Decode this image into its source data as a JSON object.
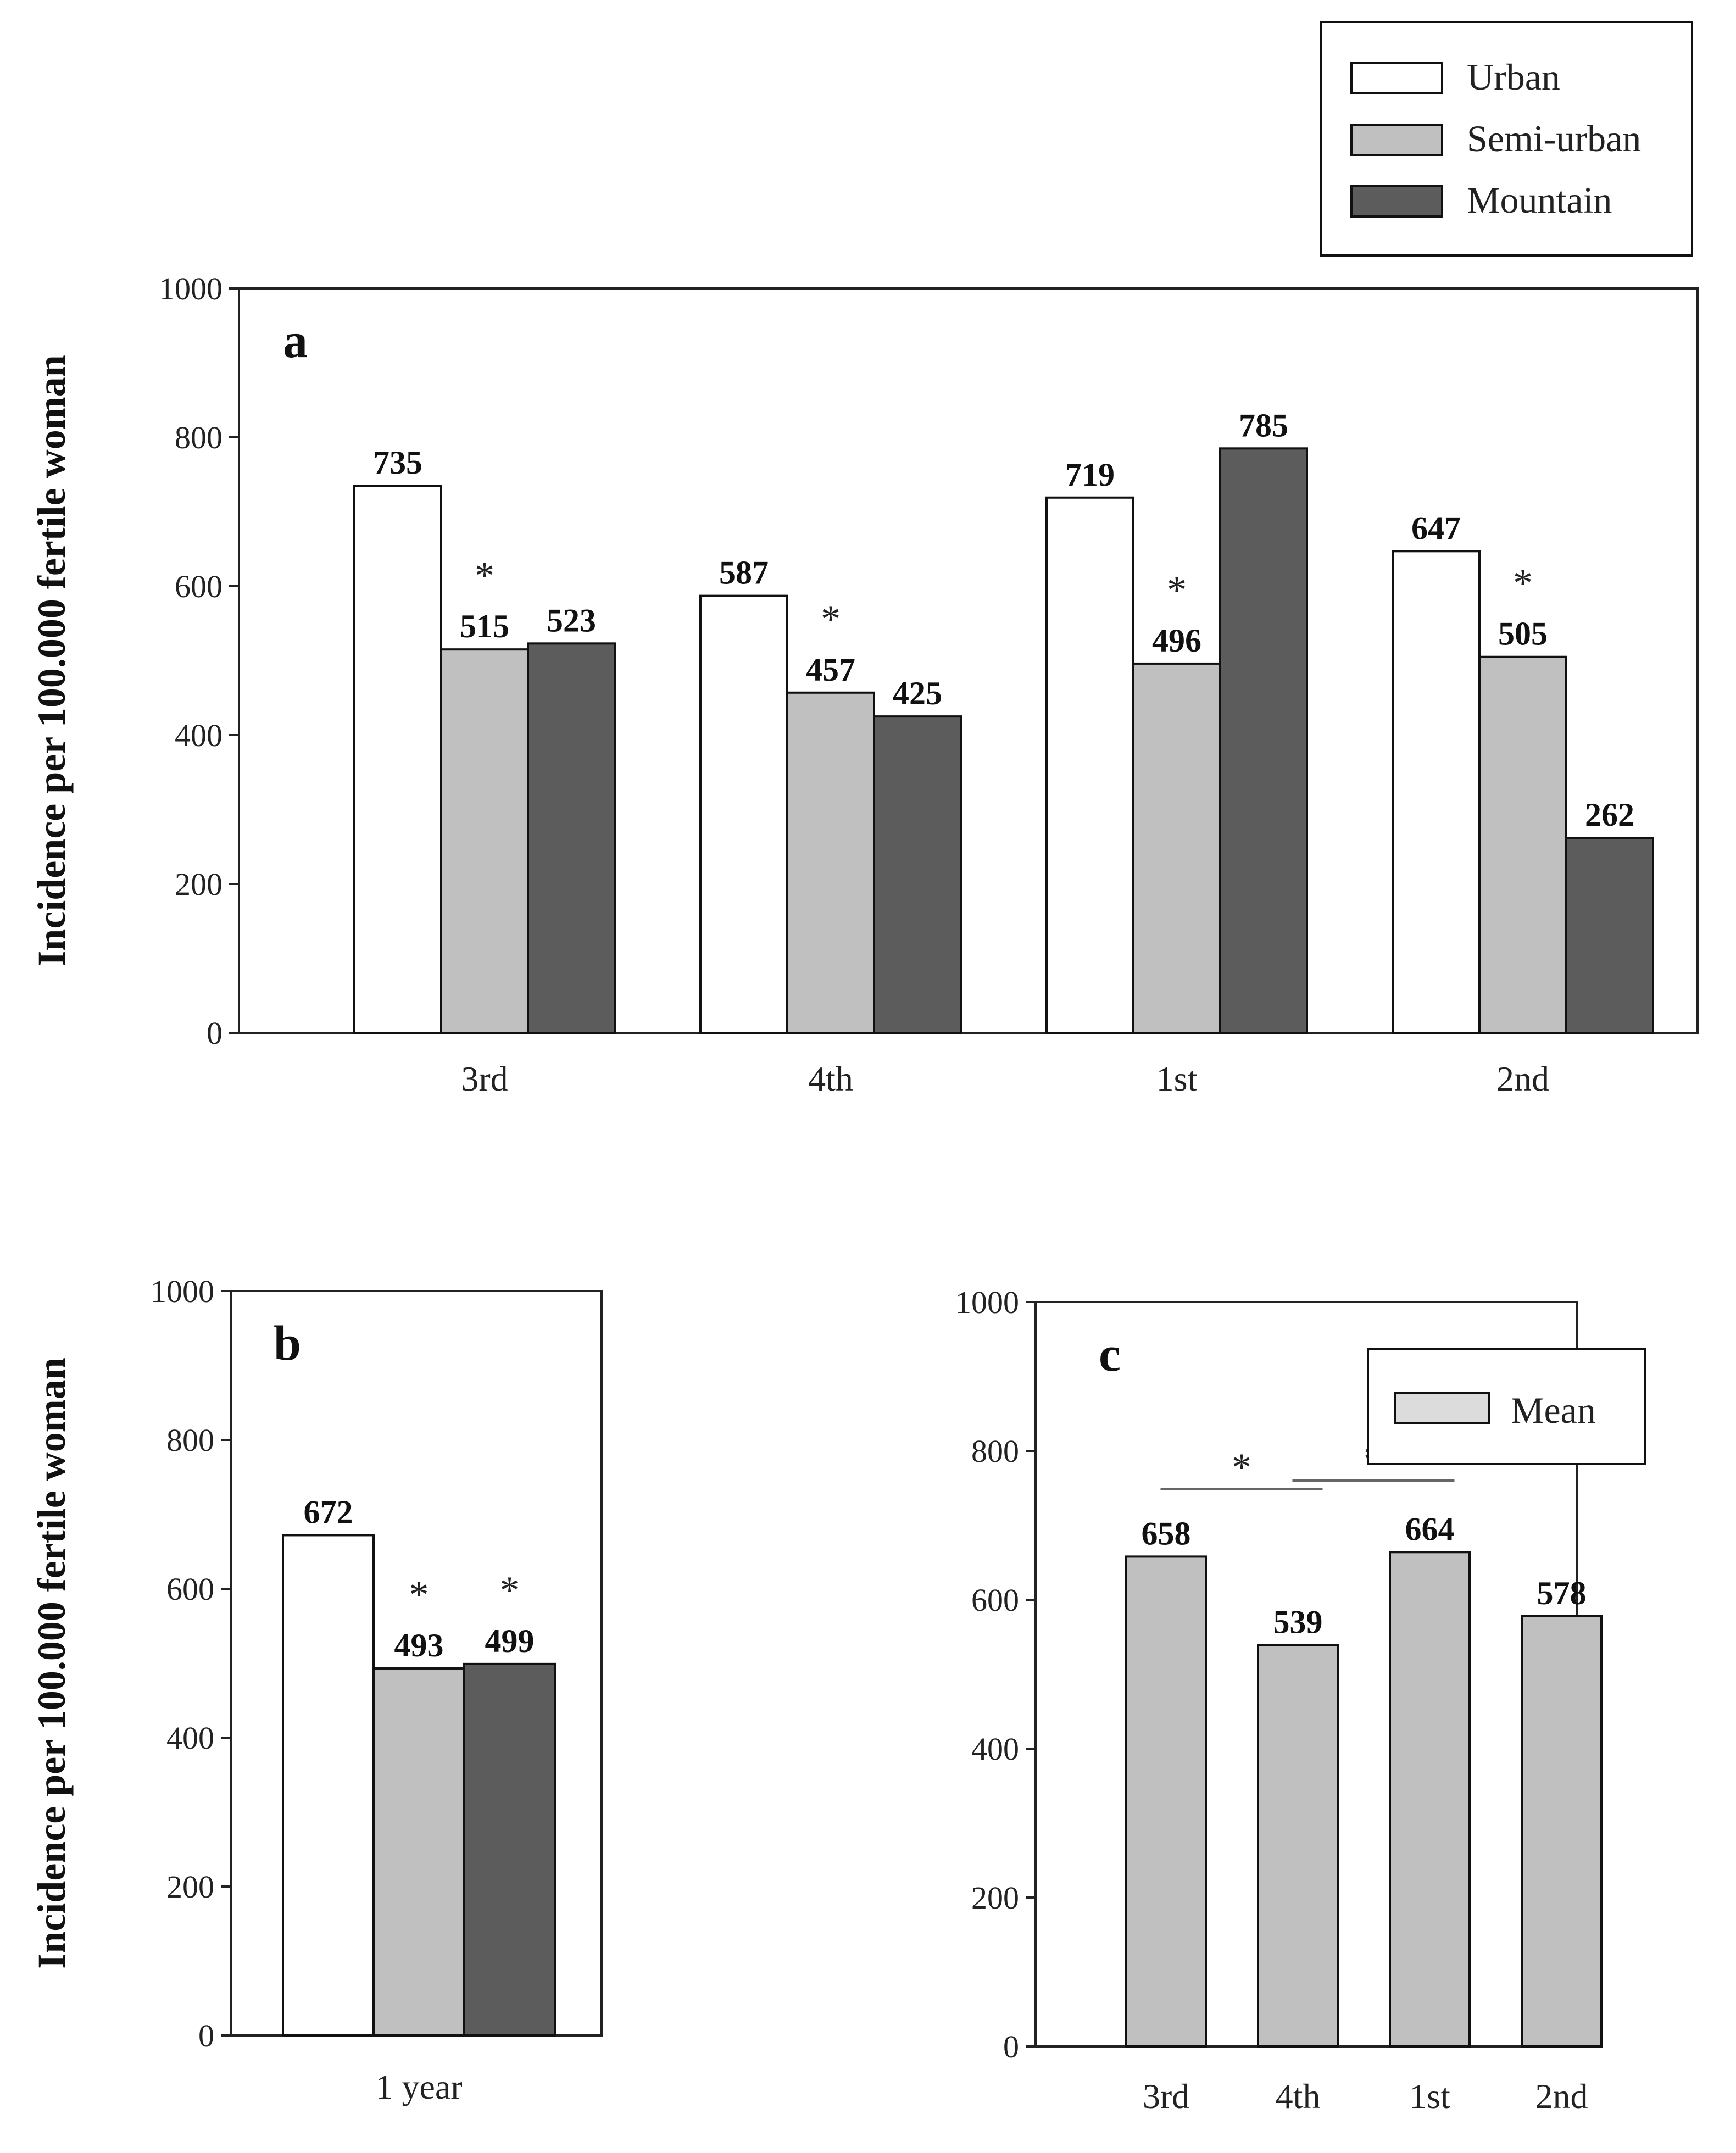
{
  "chart_data": [
    {
      "id": "a",
      "type": "bar",
      "panel_label": "a",
      "ylabel": "Incidence per 100.000 fertile woman",
      "ylim": [
        0,
        1000
      ],
      "yticks": [
        "0",
        "200",
        "400",
        "600",
        "800",
        "1000"
      ],
      "categories": [
        "3rd",
        "4th",
        "1st",
        "2nd"
      ],
      "series": [
        {
          "name": "Urban",
          "color": "#ffffff",
          "values": [
            735,
            587,
            719,
            647
          ]
        },
        {
          "name": "Semi-urban",
          "color": "#c0c0c0",
          "values": [
            515,
            457,
            496,
            505
          ]
        },
        {
          "name": "Mountain",
          "color": "#5c5c5c",
          "values": [
            523,
            425,
            785,
            262
          ]
        }
      ],
      "data_labels": [
        [
          "735",
          "587",
          "719",
          "647"
        ],
        [
          "515",
          "457",
          "496",
          "505"
        ],
        [
          "523",
          "425",
          "785",
          "262"
        ]
      ],
      "significance_marker": "*",
      "significance_series": "Semi-urban",
      "legend": {
        "position": "top-right",
        "entries": [
          "Urban",
          "Semi-urban",
          "Mountain"
        ]
      }
    },
    {
      "id": "b",
      "type": "bar",
      "panel_label": "b",
      "ylabel": "Incidence per 100.000 fertile woman",
      "ylim": [
        0,
        1000
      ],
      "yticks": [
        "0",
        "200",
        "400",
        "600",
        "800",
        "1000"
      ],
      "categories": [
        "1 year"
      ],
      "series": [
        {
          "name": "Urban",
          "color": "#ffffff",
          "values": [
            672
          ],
          "label": "672",
          "significant": false
        },
        {
          "name": "Semi-urban",
          "color": "#c0c0c0",
          "values": [
            493
          ],
          "label": "493",
          "significant": true
        },
        {
          "name": "Mountain",
          "color": "#5c5c5c",
          "values": [
            499
          ],
          "label": "499",
          "significant": true
        }
      ],
      "significance_marker": "*"
    },
    {
      "id": "c",
      "type": "bar",
      "panel_label": "c",
      "ylim": [
        0,
        1000
      ],
      "yticks": [
        "0",
        "200",
        "400",
        "600",
        "800",
        "1000"
      ],
      "categories": [
        "3rd",
        "4th",
        "1st",
        "2nd"
      ],
      "series": [
        {
          "name": "Mean",
          "color": "#c0c0c0",
          "values": [
            658,
            539,
            664,
            578
          ],
          "labels": [
            "658",
            "539",
            "664",
            "578"
          ]
        }
      ],
      "significance_brackets": [
        {
          "from": "3rd",
          "to": "4th",
          "marker": "*"
        },
        {
          "from": "4th",
          "to": "1st",
          "marker": "*"
        }
      ],
      "legend": {
        "position": "top-right",
        "entries": [
          "Mean"
        ]
      }
    }
  ]
}
